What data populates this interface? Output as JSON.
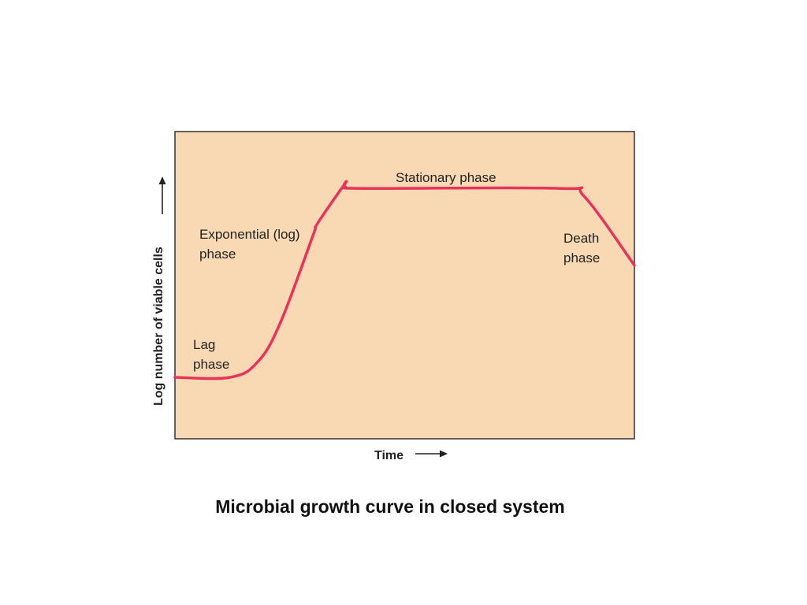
{
  "caption": "Microbial growth curve in closed system",
  "chart_data": {
    "type": "line",
    "title": "",
    "xlabel": "Time",
    "ylabel": "Log number of viable cells",
    "x_ticks": "none",
    "y_ticks": "none",
    "grid": false,
    "colors": {
      "plot_background": "#f8d9b3",
      "frame": "#333333",
      "curve": "#e8335a",
      "axis_arrows": "#222222"
    },
    "series": [
      {
        "color": "#e8335a",
        "points": [
          {
            "x": 0,
            "y": 0.2
          },
          {
            "x": 0.12,
            "y": 0.2
          },
          {
            "x": 0.18,
            "y": 0.25
          },
          {
            "x": 0.23,
            "y": 0.38
          },
          {
            "x": 0.3,
            "y": 0.66
          },
          {
            "x": 0.31,
            "y": 0.7
          },
          {
            "x": 0.37,
            "y": 0.83
          },
          {
            "x": 0.37,
            "y": 0.82
          },
          {
            "x": 0.42,
            "y": 0.815
          },
          {
            "x": 0.84,
            "y": 0.815
          },
          {
            "x": 0.89,
            "y": 0.79
          },
          {
            "x": 1.0,
            "y": 0.565
          }
        ]
      }
    ],
    "annotations": [
      {
        "key": "lag",
        "lines": [
          "Lag",
          "phase"
        ]
      },
      {
        "key": "exponential",
        "lines": [
          "Exponential (log)",
          "phase"
        ]
      },
      {
        "key": "stationary",
        "lines": [
          "Stationary phase"
        ]
      },
      {
        "key": "death",
        "lines": [
          "Death",
          "phase"
        ]
      }
    ]
  }
}
